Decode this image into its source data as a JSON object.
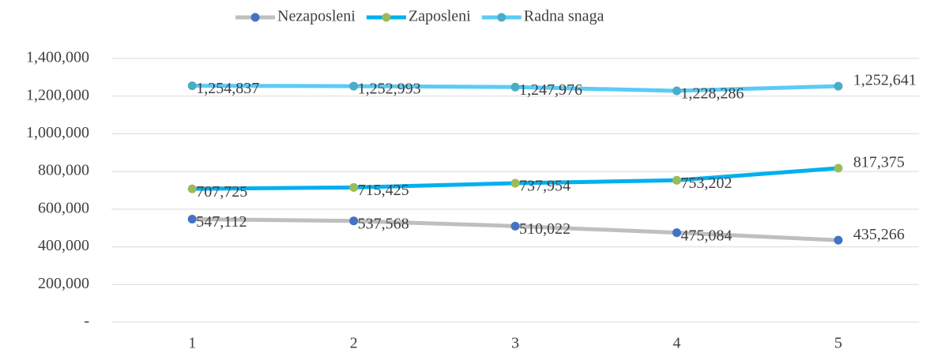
{
  "chart_data": {
    "type": "line",
    "categories": [
      "1",
      "2",
      "3",
      "4",
      "5"
    ],
    "series": [
      {
        "name": "Nezaposleni",
        "color": "#bfbfbf",
        "marker_color": "#4472c4",
        "values": [
          547112,
          537568,
          510022,
          475084,
          435266
        ],
        "value_labels": [
          "547,112",
          "537,568",
          "510,022",
          "475,084",
          "435,266"
        ]
      },
      {
        "name": "Zaposleni",
        "color": "#00b0f0",
        "marker_color": "#9bbb59",
        "values": [
          707725,
          715425,
          737954,
          753202,
          817375
        ],
        "value_labels": [
          "707,725",
          "715,425",
          "737,954",
          "753,202",
          "817,375"
        ]
      },
      {
        "name": "Radna snaga",
        "color": "#5bcbf5",
        "marker_color": "#4bacc6",
        "values": [
          1254837,
          1252993,
          1247976,
          1228286,
          1252641
        ],
        "value_labels": [
          "1,254,837",
          "1,252,993",
          "1,247,976",
          "1,228,286",
          "1,252,641"
        ]
      }
    ],
    "ylim": [
      0,
      1400000
    ],
    "yticks": [
      {
        "value": 0,
        "label": "-"
      },
      {
        "value": 200000,
        "label": "200,000"
      },
      {
        "value": 400000,
        "label": "400,000"
      },
      {
        "value": 600000,
        "label": "600,000"
      },
      {
        "value": 800000,
        "label": "800,000"
      },
      {
        "value": 1000000,
        "label": "1,000,000"
      },
      {
        "value": 1200000,
        "label": "1,200,000"
      },
      {
        "value": 1400000,
        "label": "1,400,000"
      }
    ],
    "grid": true,
    "legend": "top"
  }
}
